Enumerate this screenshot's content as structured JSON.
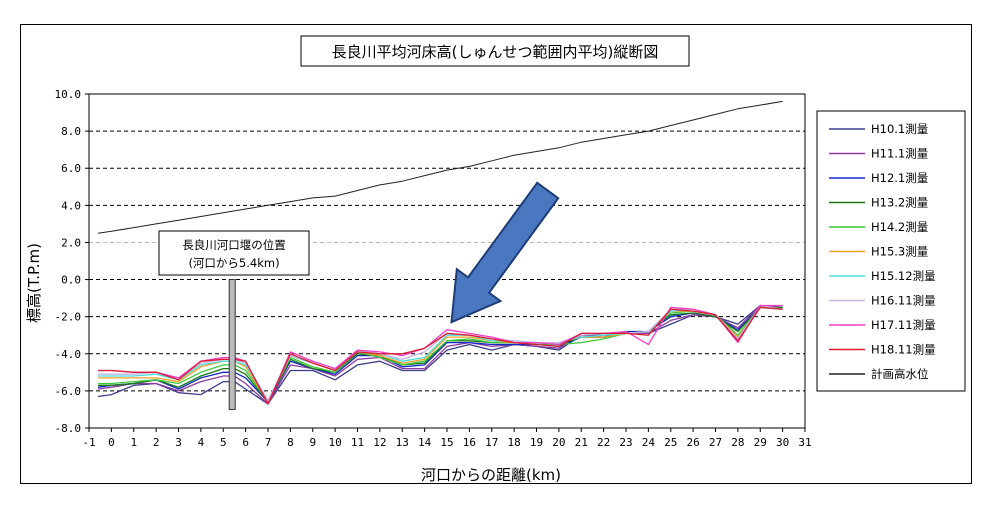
{
  "chart_data": {
    "type": "line",
    "title": "長良川平均河床高(しゅんせつ範囲内平均)縦断図",
    "xlabel": "河口からの距離(km)",
    "ylabel": "標高(T.P.m)",
    "xlim": [
      -1,
      31
    ],
    "ylim": [
      -8,
      10
    ],
    "x_ticks": [
      "-1",
      "0",
      "1",
      "2",
      "3",
      "4",
      "5",
      "6",
      "7",
      "8",
      "9",
      "10",
      "11",
      "12",
      "13",
      "14",
      "15",
      "16",
      "17",
      "18",
      "19",
      "20",
      "21",
      "22",
      "23",
      "24",
      "25",
      "26",
      "27",
      "28",
      "29",
      "30",
      "31"
    ],
    "y_ticks": [
      "10.0",
      "8.0",
      "6.0",
      "4.0",
      "2.0",
      "0.0",
      "-2.0",
      "-4.0",
      "-6.0",
      "-8.0"
    ],
    "y_tick_values": [
      10,
      8,
      6,
      4,
      2,
      0,
      -2,
      -4,
      -6,
      -8
    ],
    "grid": "horizontal-dashed",
    "legend_position": "right",
    "x": [
      -0.6,
      0,
      1,
      2,
      3,
      4,
      5,
      5.5,
      6,
      7,
      8,
      9,
      10,
      11,
      12,
      13,
      14,
      15,
      16,
      17,
      18,
      19,
      20,
      21,
      22,
      23,
      24,
      25,
      26,
      27,
      28,
      29,
      30
    ],
    "series": [
      {
        "name": "H10.1測量",
        "color": "#3c3c8c",
        "values": [
          -6.3,
          -6.2,
          -5.7,
          -5.6,
          -6.1,
          -6.2,
          -5.5,
          -5.5,
          -5.9,
          -6.7,
          -4.9,
          -4.9,
          -5.4,
          -4.6,
          -4.4,
          -4.9,
          -4.9,
          -3.8,
          -3.5,
          -3.8,
          -3.5,
          -3.6,
          -3.8,
          -3.0,
          -3.0,
          -2.9,
          -2.9,
          -2.4,
          -1.9,
          -2.0,
          -2.4,
          -1.4,
          -1.5
        ]
      },
      {
        "name": "H11.1測量",
        "color": "#8c3ca0",
        "values": [
          -5.9,
          -5.8,
          -5.6,
          -5.6,
          -6.0,
          -5.5,
          -5.2,
          -5.2,
          -5.6,
          -6.7,
          -4.6,
          -4.8,
          -5.2,
          -4.3,
          -4.2,
          -4.8,
          -4.8,
          -3.6,
          -3.4,
          -3.6,
          -3.5,
          -3.6,
          -3.7,
          -3.0,
          -3.1,
          -2.9,
          -2.9,
          -2.2,
          -1.9,
          -2.0,
          -2.6,
          -1.4,
          -1.5
        ]
      },
      {
        "name": "H12.1測量",
        "color": "#1428c8",
        "values": [
          -5.8,
          -5.7,
          -5.6,
          -5.4,
          -5.9,
          -5.3,
          -5.0,
          -5.0,
          -5.3,
          -6.6,
          -4.4,
          -4.8,
          -5.1,
          -4.1,
          -4.1,
          -4.7,
          -4.6,
          -3.4,
          -3.4,
          -3.5,
          -3.5,
          -3.5,
          -3.6,
          -3.1,
          -3.1,
          -2.8,
          -2.8,
          -2.0,
          -1.8,
          -2.0,
          -2.7,
          -1.5,
          -1.5
        ]
      },
      {
        "name": "H13.2測量",
        "color": "#147814",
        "values": [
          -5.7,
          -5.7,
          -5.6,
          -5.4,
          -5.8,
          -5.2,
          -4.8,
          -4.8,
          -5.1,
          -6.6,
          -4.3,
          -4.8,
          -5.0,
          -4.0,
          -4.1,
          -4.6,
          -4.5,
          -3.3,
          -3.3,
          -3.4,
          -3.4,
          -3.5,
          -3.5,
          -3.1,
          -3.1,
          -2.9,
          -2.8,
          -1.9,
          -1.8,
          -2.0,
          -2.8,
          -1.5,
          -1.5
        ]
      },
      {
        "name": "H14.2測量",
        "color": "#3cc83c",
        "values": [
          -5.6,
          -5.6,
          -5.5,
          -5.4,
          -5.6,
          -5.0,
          -4.6,
          -4.6,
          -4.9,
          -6.6,
          -4.2,
          -4.7,
          -5.0,
          -3.9,
          -4.2,
          -4.6,
          -4.4,
          -3.3,
          -3.2,
          -3.4,
          -3.4,
          -3.5,
          -3.5,
          -3.4,
          -3.2,
          -2.9,
          -2.8,
          -1.8,
          -1.7,
          -1.9,
          -3.0,
          -1.5,
          -1.6
        ]
      },
      {
        "name": "H15.3測量",
        "color": "#f0a028",
        "values": [
          -5.3,
          -5.3,
          -5.3,
          -5.3,
          -5.5,
          -4.7,
          -4.4,
          -4.4,
          -4.7,
          -6.6,
          -4.1,
          -4.5,
          -4.9,
          -3.9,
          -4.1,
          -4.5,
          -4.3,
          -3.1,
          -3.1,
          -3.3,
          -3.4,
          -3.4,
          -3.4,
          -3.1,
          -3.1,
          -2.9,
          -2.8,
          -1.7,
          -1.7,
          -1.9,
          -3.1,
          -1.5,
          -1.6
        ]
      },
      {
        "name": "H15.12測量",
        "color": "#50dcdc",
        "values": [
          -5.2,
          -5.2,
          -5.2,
          -5.1,
          -5.4,
          -4.6,
          -4.4,
          -4.4,
          -4.6,
          -6.5,
          -4.1,
          -4.5,
          -4.9,
          -3.9,
          -4.0,
          -4.4,
          -4.2,
          -3.0,
          -3.0,
          -3.3,
          -3.3,
          -3.4,
          -3.4,
          -3.1,
          -3.0,
          -2.9,
          -2.8,
          -1.7,
          -1.6,
          -1.9,
          -3.2,
          -1.5,
          -1.6
        ]
      },
      {
        "name": "H16.11測量",
        "color": "#c8b4e6",
        "values": [
          -5.1,
          -5.1,
          -5.1,
          -5.0,
          -5.3,
          -4.5,
          -4.3,
          -4.3,
          -4.5,
          -6.5,
          -4.1,
          -4.4,
          -4.8,
          -3.8,
          -4.0,
          -4.3,
          -3.9,
          -2.9,
          -3.0,
          -3.2,
          -3.3,
          -3.4,
          -3.4,
          -3.0,
          -2.9,
          -2.9,
          -2.8,
          -1.6,
          -1.6,
          -1.9,
          -3.2,
          -1.4,
          -1.6
        ]
      },
      {
        "name": "H17.11測量",
        "color": "#f03cc8",
        "values": [
          -4.9,
          -4.9,
          -5.0,
          -5.0,
          -5.3,
          -4.4,
          -4.2,
          -4.2,
          -4.4,
          -6.7,
          -3.9,
          -4.4,
          -4.8,
          -3.8,
          -3.9,
          -4.1,
          -3.7,
          -2.7,
          -2.9,
          -3.1,
          -3.4,
          -3.4,
          -3.5,
          -2.9,
          -2.9,
          -2.8,
          -3.5,
          -1.5,
          -1.6,
          -1.9,
          -3.4,
          -1.4,
          -1.4
        ]
      },
      {
        "name": "H18.11測量",
        "color": "#dc1e32",
        "values": [
          -4.9,
          -4.9,
          -5.0,
          -5.0,
          -5.4,
          -4.4,
          -4.3,
          -4.3,
          -4.4,
          -6.7,
          -4.0,
          -4.5,
          -4.9,
          -3.9,
          -4.0,
          -4.0,
          -3.7,
          -2.9,
          -3.0,
          -3.2,
          -3.4,
          -3.5,
          -3.6,
          -2.9,
          -2.9,
          -2.9,
          -3.0,
          -1.6,
          -1.7,
          -1.9,
          -3.3,
          -1.5,
          -1.6
        ]
      },
      {
        "name": "計画高水位",
        "color": "#222222",
        "values": [
          2.5,
          2.6,
          2.8,
          3.0,
          3.2,
          3.4,
          3.6,
          3.7,
          3.8,
          4.0,
          4.2,
          4.4,
          4.5,
          4.8,
          5.1,
          5.3,
          5.6,
          5.9,
          6.1,
          6.4,
          6.7,
          6.9,
          7.1,
          7.4,
          7.6,
          7.8,
          8.0,
          8.3,
          8.6,
          8.9,
          9.2,
          9.4,
          9.6
        ]
      }
    ],
    "annotation": {
      "line1": "長良川河口堰の位置",
      "line2": "(河口から5.4km)",
      "x": 5.4,
      "bar_from": 0.0,
      "bar_to": -7.0
    },
    "arrow": {
      "from": {
        "x": 19.5,
        "y": 4.8
      },
      "to": {
        "x": 15.2,
        "y": -2.3
      },
      "color": "#4a78c0"
    }
  }
}
